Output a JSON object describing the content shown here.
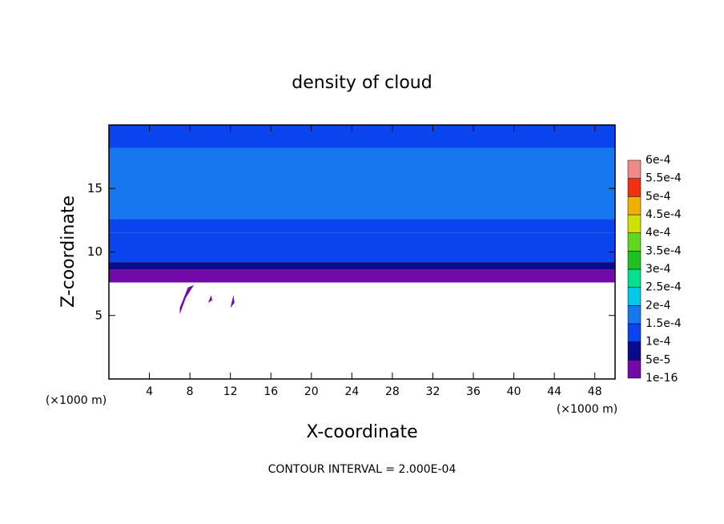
{
  "chart_data": {
    "type": "contour",
    "title": "density of cloud",
    "x_label": "X-coordinate",
    "y_label": "Z-coordinate",
    "x_unit": "(×1000 m)",
    "y_unit": "(×1000 m)",
    "footer": "CONTOUR INTERVAL = 2.000E-04",
    "xlim": [
      0,
      50
    ],
    "xticks": [
      4,
      8,
      12,
      16,
      20,
      24,
      28,
      32,
      36,
      40,
      44,
      48
    ],
    "ylim": [
      0,
      20
    ],
    "yticks": [
      5,
      10,
      15
    ],
    "colorbar": {
      "levels": [
        {
          "value": 1e-16,
          "label": "1e-16"
        },
        {
          "value": 5e-05,
          "label": "5e-5"
        },
        {
          "value": 0.0001,
          "label": "1e-4"
        },
        {
          "value": 0.00015,
          "label": "1.5e-4"
        },
        {
          "value": 0.0002,
          "label": "2e-4"
        },
        {
          "value": 0.00025,
          "label": "2.5e-4"
        },
        {
          "value": 0.0003,
          "label": "3e-4"
        },
        {
          "value": 0.00035,
          "label": "3.5e-4"
        },
        {
          "value": 0.0004,
          "label": "4e-4"
        },
        {
          "value": 0.00045,
          "label": "4.5e-4"
        },
        {
          "value": 0.0005,
          "label": "5e-4"
        },
        {
          "value": 0.00055,
          "label": "5.5e-4"
        },
        {
          "value": 0.0006,
          "label": "6e-4"
        }
      ],
      "colors": [
        "#7408a8",
        "#0a0a8c",
        "#0a44ec",
        "#1678f0",
        "#00c8e8",
        "#00e090",
        "#20c020",
        "#60d820",
        "#d0e000",
        "#f0b000",
        "#f03010",
        "#f08888"
      ]
    },
    "bands": [
      {
        "z": [
          18.2,
          20
        ],
        "value": 0.00012
      },
      {
        "z": [
          12.6,
          18.2
        ],
        "value": 0.00016
      },
      {
        "z": [
          11.5,
          12.6
        ],
        "value": 0.00012
      },
      {
        "z": [
          9.2,
          11.5
        ],
        "value": 0.000105
      },
      {
        "z": [
          8.6,
          9.2
        ],
        "value": 7e-05
      },
      {
        "z": [
          7.6,
          8.6
        ],
        "value": 2e-05
      }
    ],
    "patches": [
      {
        "x": [
          7.0,
          7.6,
          8.4,
          7.8,
          7.0
        ],
        "z": [
          5.1,
          6.4,
          7.4,
          7.2,
          5.6
        ],
        "value": 2e-05
      },
      {
        "x": [
          9.8,
          10.2,
          10.1,
          9.8
        ],
        "z": [
          6.0,
          6.2,
          6.6,
          6.0
        ],
        "value": 2e-05
      },
      {
        "x": [
          12.0,
          12.4,
          12.3,
          12.0
        ],
        "z": [
          5.6,
          6.0,
          6.6,
          5.6
        ],
        "value": 2e-05
      }
    ]
  }
}
